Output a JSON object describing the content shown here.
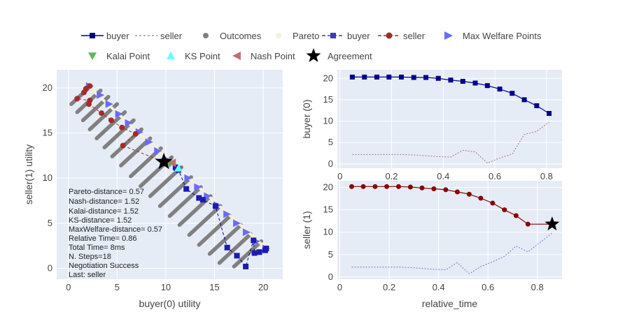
{
  "legend": [
    {
      "label": "buyer",
      "kind": "line-square",
      "color": "#00008b",
      "dash": "solid"
    },
    {
      "label": "seller",
      "kind": "line",
      "color": "#999999",
      "dash": "dot"
    },
    {
      "label": "Outcomes",
      "kind": "circle",
      "color": "#808080"
    },
    {
      "label": "Pareto",
      "kind": "circle",
      "color": "#f5f0d8"
    },
    {
      "label": "buyer",
      "kind": "line-square",
      "color": "#3b3bb3",
      "dash": "dash"
    },
    {
      "label": "seller",
      "kind": "line-circle",
      "color": "#a52a2a",
      "dash": "dash"
    },
    {
      "label": "Max Welfare Points",
      "kind": "triangle-right",
      "color": "#6a6aff"
    },
    {
      "label": "Kalai Point",
      "kind": "triangle-down",
      "color": "#5cb85c"
    },
    {
      "label": "KS Point",
      "kind": "triangle-up",
      "color": "#66ffff"
    },
    {
      "label": "Nash Point",
      "kind": "triangle-left",
      "color": "#c07070"
    },
    {
      "label": "Agreement",
      "kind": "star",
      "color": "#000000"
    }
  ],
  "stats": [
    "Pareto-distance= 0.57",
    "Nash-distance= 1.52",
    "Kalai-distance= 1.52",
    "KS-distance= 1.52",
    "MaxWelfare-distance= 0.57",
    "Relative Time= 0.86",
    "Total Time= 8ms",
    "N. Steps=18",
    "Negotiation Success",
    "Last: seller"
  ],
  "chart_data": [
    {
      "type": "scatter",
      "title": "",
      "xlabel": "buyer(0) utility",
      "ylabel": "seller(1) utility",
      "xlim": [
        -1.2,
        22
      ],
      "ylim": [
        -1.2,
        22
      ],
      "xticks": [
        0,
        5,
        10,
        15,
        20
      ],
      "yticks": [
        0,
        5,
        10,
        15,
        20
      ],
      "grid": true,
      "outcome_color": "#808080",
      "outcome_bands": [
        {
          "x": 0.3,
          "y": 18.2,
          "len": 2.0
        },
        {
          "x": 0.9,
          "y": 17.3,
          "len": 2.4
        },
        {
          "x": 1.5,
          "y": 16.4,
          "len": 2.6
        },
        {
          "x": 2.2,
          "y": 15.4,
          "len": 2.8
        },
        {
          "x": 2.9,
          "y": 14.4,
          "len": 2.9
        },
        {
          "x": 3.7,
          "y": 13.4,
          "len": 3.0
        },
        {
          "x": 4.5,
          "y": 12.4,
          "len": 3.0
        },
        {
          "x": 5.4,
          "y": 11.4,
          "len": 3.0
        },
        {
          "x": 6.4,
          "y": 10.2,
          "len": 3.1
        },
        {
          "x": 7.4,
          "y": 9.1,
          "len": 3.2
        },
        {
          "x": 8.4,
          "y": 8.0,
          "len": 3.2
        },
        {
          "x": 9.4,
          "y": 6.9,
          "len": 3.2
        },
        {
          "x": 10.4,
          "y": 5.8,
          "len": 3.2
        },
        {
          "x": 11.4,
          "y": 4.8,
          "len": 3.2
        },
        {
          "x": 12.4,
          "y": 3.7,
          "len": 3.2
        },
        {
          "x": 13.4,
          "y": 2.6,
          "len": 3.2
        },
        {
          "x": 14.5,
          "y": 1.6,
          "len": 3.2
        },
        {
          "x": 15.5,
          "y": 0.6,
          "len": 3.2
        },
        {
          "x": 17.0,
          "y": 0.2,
          "len": 2.8
        }
      ],
      "pareto_color": "#f5f0d8",
      "pareto": [
        [
          2.0,
          20.2
        ],
        [
          20.3,
          2.2
        ]
      ],
      "max_welfare_color": "#6a6aff",
      "max_welfare": [
        [
          2.2,
          20.2
        ],
        [
          3.3,
          19.2
        ],
        [
          4.2,
          18.2
        ],
        [
          5.2,
          17.1
        ],
        [
          6.2,
          16.1
        ],
        [
          7.3,
          15.1
        ],
        [
          8.3,
          14.0
        ],
        [
          9.2,
          13.0
        ],
        [
          10.2,
          12.0
        ],
        [
          11.3,
          11.0
        ],
        [
          12.3,
          10.0
        ],
        [
          13.3,
          9.0
        ],
        [
          14.3,
          8.0
        ],
        [
          15.3,
          7.0
        ],
        [
          16.3,
          6.0
        ],
        [
          17.3,
          5.0
        ],
        [
          18.3,
          4.0
        ],
        [
          19.3,
          3.0
        ],
        [
          20.3,
          2.2
        ]
      ],
      "kalai": [
        10.4,
        11.6
      ],
      "ks": [
        11.3,
        11.1
      ],
      "nash": [
        10.6,
        11.7
      ],
      "agreement": [
        9.8,
        11.8
      ],
      "buyer_offers_color": "#00008b",
      "buyer_offers": [
        [
          20.3,
          2.2
        ],
        [
          20.2,
          2.0
        ],
        [
          19.6,
          1.8
        ],
        [
          19.1,
          1.7
        ],
        [
          19.0,
          3.1
        ],
        [
          18.2,
          0.2
        ],
        [
          17.3,
          1.4
        ],
        [
          16.3,
          2.3
        ],
        [
          15.1,
          6.9
        ],
        [
          13.8,
          7.6
        ],
        [
          13.4,
          7.8
        ],
        [
          12.1,
          8.8
        ],
        [
          11.3,
          10.9
        ],
        [
          11.1,
          11.1
        ],
        [
          11.0,
          11.2
        ],
        [
          9.8,
          11.8
        ]
      ],
      "seller_offers_color": "#a52a2a",
      "seller_offers": [
        [
          2.2,
          20.2
        ],
        [
          1.8,
          19.9
        ],
        [
          1.6,
          19.5
        ],
        [
          0.9,
          18.8
        ],
        [
          2.2,
          18.6
        ],
        [
          2.1,
          18.2
        ],
        [
          3.4,
          17.2
        ],
        [
          4.4,
          16.4
        ],
        [
          5.5,
          15.6
        ],
        [
          6.9,
          14.9
        ],
        [
          5.6,
          13.6
        ],
        [
          9.8,
          11.8
        ]
      ]
    },
    {
      "type": "line",
      "title": "",
      "xlabel": "",
      "ylabel": "buyer (0)",
      "xlim": [
        -0.01,
        0.86
      ],
      "ylim": [
        -1,
        22
      ],
      "xticks": [
        0,
        0.2,
        0.4,
        0.6,
        0.8
      ],
      "xticklabels": [
        "0",
        "0.2",
        "0.4",
        "0.6",
        "0.8"
      ],
      "yticks": [
        0,
        5,
        10,
        15,
        20
      ],
      "grid": true,
      "series": [
        {
          "name": "buyer",
          "color": "#00008b",
          "style": "solid-square",
          "x": [
            0.048,
            0.095,
            0.143,
            0.19,
            0.238,
            0.286,
            0.333,
            0.381,
            0.429,
            0.476,
            0.524,
            0.571,
            0.619,
            0.667,
            0.714,
            0.762,
            0.81
          ],
          "y": [
            20.3,
            20.3,
            20.3,
            20.3,
            20.3,
            20.2,
            20.2,
            20.0,
            19.6,
            19.3,
            18.9,
            18.3,
            17.5,
            16.5,
            15.0,
            13.6,
            11.8
          ]
        },
        {
          "name": "seller",
          "color": "#b07080",
          "style": "dotted",
          "x": [
            0.048,
            0.095,
            0.143,
            0.19,
            0.238,
            0.286,
            0.333,
            0.381,
            0.429,
            0.476,
            0.524,
            0.571,
            0.619,
            0.667,
            0.714,
            0.762,
            0.81
          ],
          "y": [
            2.2,
            2.2,
            2.2,
            2.2,
            2.2,
            2.1,
            1.9,
            1.7,
            1.6,
            3.2,
            2.8,
            0.2,
            1.4,
            2.3,
            6.9,
            7.6,
            9.8
          ]
        }
      ]
    },
    {
      "type": "line",
      "title": "",
      "xlabel": "relative_time",
      "ylabel": "seller (1)",
      "xlim": [
        -0.01,
        0.9
      ],
      "ylim": [
        -0.5,
        21.5
      ],
      "xticks": [
        0,
        0.2,
        0.4,
        0.6,
        0.8
      ],
      "xticklabels": [
        "0",
        "0.2",
        "0.4",
        "0.6",
        "0.8"
      ],
      "yticks": [
        0,
        5,
        10,
        15,
        20
      ],
      "grid": true,
      "series": [
        {
          "name": "seller",
          "color": "#8b0000",
          "style": "solid-circle",
          "x": [
            0.048,
            0.095,
            0.143,
            0.19,
            0.238,
            0.286,
            0.333,
            0.381,
            0.429,
            0.476,
            0.524,
            0.571,
            0.619,
            0.667,
            0.714,
            0.762,
            0.86
          ],
          "y": [
            20.2,
            20.2,
            20.2,
            20.2,
            20.2,
            20.1,
            19.9,
            19.7,
            19.5,
            19.0,
            18.5,
            17.6,
            16.5,
            15.0,
            13.7,
            11.8,
            11.8
          ]
        },
        {
          "name": "buyer",
          "color": "#7080c0",
          "style": "dotted",
          "x": [
            0.048,
            0.095,
            0.143,
            0.19,
            0.238,
            0.286,
            0.333,
            0.381,
            0.429,
            0.476,
            0.524,
            0.571,
            0.619,
            0.667,
            0.714,
            0.762,
            0.86
          ],
          "y": [
            2.2,
            2.2,
            2.2,
            2.2,
            2.2,
            2.1,
            1.9,
            1.7,
            1.6,
            3.2,
            0.7,
            2.3,
            3.4,
            4.6,
            6.9,
            5.6,
            9.8
          ]
        }
      ],
      "agreement": [
        0.86,
        11.8
      ]
    }
  ]
}
